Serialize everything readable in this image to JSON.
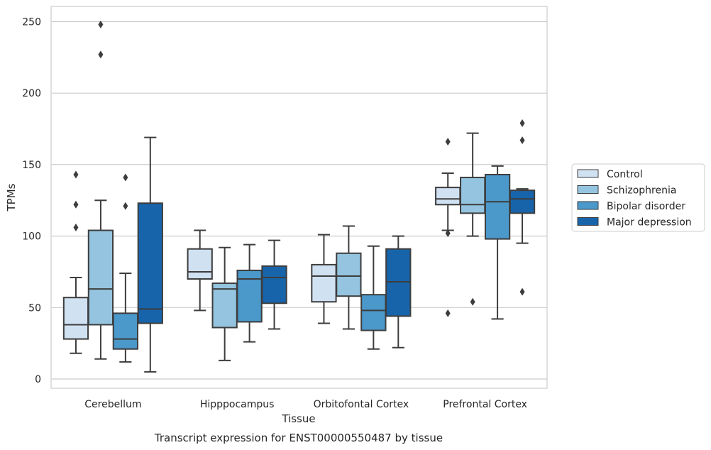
{
  "chart_data": {
    "type": "box",
    "ylabel": "TPMs",
    "xlabel": "Tissue",
    "caption": "Transcript expression for ENST00000550487 by tissue",
    "ylim": [
      -6,
      261
    ],
    "yticks": [
      0,
      50,
      100,
      150,
      200,
      250
    ],
    "grid": "horizontal",
    "legend_position": "right",
    "categories": [
      "Cerebellum",
      "Hipppocampus",
      "Orbitofontal Cortex",
      "Prefrontal Cortex"
    ],
    "colors": [
      "#d0e1f2",
      "#94c4df",
      "#4b98ca",
      "#1764ab"
    ],
    "series": [
      {
        "name": "Control",
        "boxes": [
          {
            "whisker_low": 18,
            "q1": 28,
            "median": 38,
            "q3": 57,
            "whisker_high": 71,
            "outliers": [
              106,
              122,
              143
            ]
          },
          {
            "whisker_low": 48,
            "q1": 70,
            "median": 75,
            "q3": 91,
            "whisker_high": 104,
            "outliers": []
          },
          {
            "whisker_low": 39,
            "q1": 54,
            "median": 72,
            "q3": 80,
            "whisker_high": 101,
            "outliers": []
          },
          {
            "whisker_low": 104,
            "q1": 122,
            "median": 126,
            "q3": 134,
            "whisker_high": 144,
            "outliers": [
              46,
              102,
              166
            ]
          }
        ]
      },
      {
        "name": "Schizophrenia",
        "boxes": [
          {
            "whisker_low": 14,
            "q1": 38,
            "median": 63,
            "q3": 104,
            "whisker_high": 125,
            "outliers": [
              227,
              248
            ]
          },
          {
            "whisker_low": 13,
            "q1": 36,
            "median": 63,
            "q3": 67,
            "whisker_high": 92,
            "outliers": []
          },
          {
            "whisker_low": 35,
            "q1": 58,
            "median": 72,
            "q3": 88,
            "whisker_high": 107,
            "outliers": []
          },
          {
            "whisker_low": 100,
            "q1": 116,
            "median": 122,
            "q3": 141,
            "whisker_high": 172,
            "outliers": [
              54
            ]
          }
        ]
      },
      {
        "name": "Bipolar disorder",
        "boxes": [
          {
            "whisker_low": 12,
            "q1": 21,
            "median": 28,
            "q3": 46,
            "whisker_high": 74,
            "outliers": [
              121,
              141
            ]
          },
          {
            "whisker_low": 26,
            "q1": 40,
            "median": 70,
            "q3": 76,
            "whisker_high": 94,
            "outliers": []
          },
          {
            "whisker_low": 21,
            "q1": 34,
            "median": 48,
            "q3": 59,
            "whisker_high": 93,
            "outliers": []
          },
          {
            "whisker_low": 42,
            "q1": 98,
            "median": 124,
            "q3": 143,
            "whisker_high": 149,
            "outliers": []
          }
        ]
      },
      {
        "name": "Major depression",
        "boxes": [
          {
            "whisker_low": 5,
            "q1": 39,
            "median": 49,
            "q3": 123,
            "whisker_high": 169,
            "outliers": []
          },
          {
            "whisker_low": 35,
            "q1": 53,
            "median": 71,
            "q3": 79,
            "whisker_high": 97,
            "outliers": []
          },
          {
            "whisker_low": 22,
            "q1": 44,
            "median": 68,
            "q3": 91,
            "whisker_high": 100,
            "outliers": []
          },
          {
            "whisker_low": 95,
            "q1": 116,
            "median": 126,
            "q3": 132,
            "whisker_high": 133,
            "outliers": [
              61,
              167,
              179
            ]
          }
        ]
      }
    ]
  }
}
